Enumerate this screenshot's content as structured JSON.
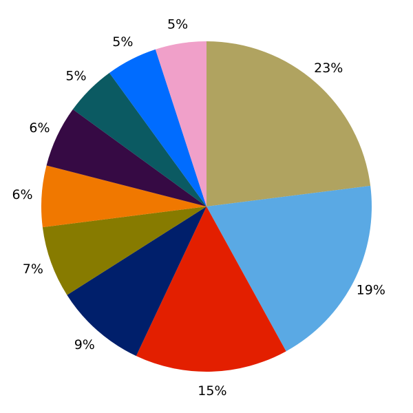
{
  "chart_data": {
    "type": "pie",
    "start_angle": "top",
    "direction": "clockwise",
    "slices": [
      {
        "value": 23,
        "label": "23%",
        "color": "#b0a360"
      },
      {
        "value": 19,
        "label": "19%",
        "color": "#5aa9e4"
      },
      {
        "value": 15,
        "label": "15%",
        "color": "#e31f00"
      },
      {
        "value": 9,
        "label": "9%",
        "color": "#001f6b"
      },
      {
        "value": 7,
        "label": "7%",
        "color": "#877b00"
      },
      {
        "value": 6,
        "label": "6%",
        "color": "#f07800"
      },
      {
        "value": 6,
        "label": "6%",
        "color": "#360a44"
      },
      {
        "value": 5,
        "label": "5%",
        "color": "#0b5a62"
      },
      {
        "value": 5,
        "label": "5%",
        "color": "#006cff"
      },
      {
        "value": 5,
        "label": "5%",
        "color": "#f0a0c9"
      }
    ]
  }
}
